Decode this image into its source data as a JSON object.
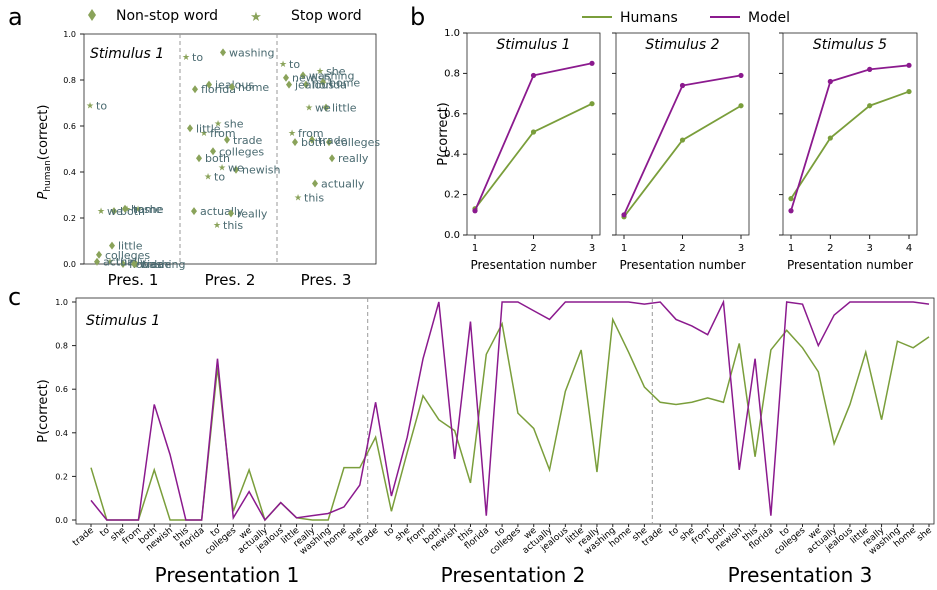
{
  "colors": {
    "humans": "#7a9e3b",
    "model": "#8b1a8e",
    "word": "#4a6a70",
    "marker": "#8aa35a",
    "axis": "#222222",
    "divider": "#9a9a9a"
  },
  "panel_labels": [
    "a",
    "b",
    "c"
  ],
  "chart_data": [
    {
      "type": "scatter",
      "panel": "a",
      "title": "Stimulus 1",
      "ylabel": "P_human(correct)",
      "ylabel_main": "P",
      "ylabel_sub": "human",
      "ylabel_rest": "(correct)",
      "ylim": [
        0,
        1.0
      ],
      "yticks": [
        0.0,
        0.2,
        0.4,
        0.6,
        0.8,
        1.0
      ],
      "x_groups": [
        "Pres. 1",
        "Pres. 2",
        "Pres. 3"
      ],
      "legend": [
        {
          "name": "Non-stop word",
          "marker": "diamond"
        },
        {
          "name": "Stop word",
          "marker": "star"
        }
      ],
      "points": [
        {
          "word": "to",
          "pres": 1,
          "y": 0.69,
          "stop": true
        },
        {
          "word": "to",
          "pres": 1,
          "y": 0.24,
          "stop": true
        },
        {
          "word": "both",
          "pres": 1,
          "y": 0.23,
          "stop": false
        },
        {
          "word": "we",
          "pres": 1,
          "y": 0.23,
          "stop": true
        },
        {
          "word": "she",
          "pres": 1,
          "y": 0.24,
          "stop": true
        },
        {
          "word": "home",
          "pres": 1,
          "y": 0.24,
          "stop": false
        },
        {
          "word": "little",
          "pres": 1,
          "y": 0.08,
          "stop": false
        },
        {
          "word": "colleges",
          "pres": 1,
          "y": 0.04,
          "stop": false
        },
        {
          "word": "trade",
          "pres": 1,
          "y": 0.0,
          "stop": false
        },
        {
          "word": "florida",
          "pres": 1,
          "y": 0.0,
          "stop": false
        },
        {
          "word": "this",
          "pres": 1,
          "y": 0.01,
          "stop": true
        },
        {
          "word": "actually",
          "pres": 1,
          "y": 0.01,
          "stop": false
        },
        {
          "word": "washing",
          "pres": 1,
          "y": 0.0,
          "stop": false
        },
        {
          "word": "to",
          "pres": 2,
          "y": 0.9,
          "stop": true
        },
        {
          "word": "washing",
          "pres": 2,
          "y": 0.92,
          "stop": false
        },
        {
          "word": "jealous",
          "pres": 2,
          "y": 0.78,
          "stop": false
        },
        {
          "word": "florida",
          "pres": 2,
          "y": 0.76,
          "stop": false
        },
        {
          "word": "home",
          "pres": 2,
          "y": 0.77,
          "stop": false
        },
        {
          "word": "she",
          "pres": 2,
          "y": 0.61,
          "stop": true
        },
        {
          "word": "from",
          "pres": 2,
          "y": 0.57,
          "stop": true
        },
        {
          "word": "little",
          "pres": 2,
          "y": 0.59,
          "stop": false
        },
        {
          "word": "trade",
          "pres": 2,
          "y": 0.54,
          "stop": false
        },
        {
          "word": "colleges",
          "pres": 2,
          "y": 0.49,
          "stop": false
        },
        {
          "word": "both",
          "pres": 2,
          "y": 0.46,
          "stop": false
        },
        {
          "word": "newish",
          "pres": 2,
          "y": 0.41,
          "stop": false
        },
        {
          "word": "we",
          "pres": 2,
          "y": 0.42,
          "stop": true
        },
        {
          "word": "to",
          "pres": 2,
          "y": 0.38,
          "stop": true
        },
        {
          "word": "actually",
          "pres": 2,
          "y": 0.23,
          "stop": false
        },
        {
          "word": "really",
          "pres": 2,
          "y": 0.22,
          "stop": false
        },
        {
          "word": "this",
          "pres": 2,
          "y": 0.17,
          "stop": true
        },
        {
          "word": "to",
          "pres": 3,
          "y": 0.87,
          "stop": true
        },
        {
          "word": "she",
          "pres": 3,
          "y": 0.84,
          "stop": true
        },
        {
          "word": "washing",
          "pres": 3,
          "y": 0.82,
          "stop": false
        },
        {
          "word": "newish",
          "pres": 3,
          "y": 0.81,
          "stop": false
        },
        {
          "word": "home",
          "pres": 3,
          "y": 0.79,
          "stop": false
        },
        {
          "word": "florida",
          "pres": 3,
          "y": 0.78,
          "stop": false
        },
        {
          "word": "jealous",
          "pres": 3,
          "y": 0.78,
          "stop": false
        },
        {
          "word": "little",
          "pres": 3,
          "y": 0.68,
          "stop": false
        },
        {
          "word": "we",
          "pres": 3,
          "y": 0.68,
          "stop": true
        },
        {
          "word": "from",
          "pres": 3,
          "y": 0.57,
          "stop": true
        },
        {
          "word": "colleges",
          "pres": 3,
          "y": 0.53,
          "stop": false
        },
        {
          "word": "trade",
          "pres": 3,
          "y": 0.54,
          "stop": false
        },
        {
          "word": "both",
          "pres": 3,
          "y": 0.53,
          "stop": false
        },
        {
          "word": "really",
          "pres": 3,
          "y": 0.46,
          "stop": false
        },
        {
          "word": "actually",
          "pres": 3,
          "y": 0.35,
          "stop": false
        },
        {
          "word": "this",
          "pres": 3,
          "y": 0.29,
          "stop": true
        }
      ]
    },
    {
      "type": "line",
      "panel": "b",
      "legend": [
        "Humans",
        "Model"
      ],
      "ylabel": "P(correct)",
      "xlabel": "Presentation number",
      "ylim": [
        0,
        1.0
      ],
      "yticks": [
        0.0,
        0.2,
        0.4,
        0.6,
        0.8,
        1.0
      ],
      "subplots": [
        {
          "title": "Stimulus 1",
          "x": [
            1,
            2,
            3
          ],
          "series": [
            {
              "name": "Humans",
              "values": [
                0.13,
                0.51,
                0.65
              ]
            },
            {
              "name": "Model",
              "values": [
                0.12,
                0.79,
                0.85
              ]
            }
          ]
        },
        {
          "title": "Stimulus 2",
          "x": [
            1,
            2,
            3
          ],
          "series": [
            {
              "name": "Humans",
              "values": [
                0.09,
                0.47,
                0.64
              ]
            },
            {
              "name": "Model",
              "values": [
                0.1,
                0.74,
                0.79
              ]
            }
          ]
        },
        {
          "title": "Stimulus 5",
          "x": [
            1,
            2,
            3,
            4
          ],
          "series": [
            {
              "name": "Humans",
              "values": [
                0.18,
                0.48,
                0.64,
                0.71
              ]
            },
            {
              "name": "Model",
              "values": [
                0.12,
                0.76,
                0.82,
                0.84
              ]
            }
          ]
        }
      ]
    },
    {
      "type": "line",
      "panel": "c",
      "title": "Stimulus 1",
      "ylabel": "P(correct)",
      "ylim": [
        0,
        1.0
      ],
      "yticks": [
        0.0,
        0.2,
        0.4,
        0.6,
        0.8,
        1.0
      ],
      "group_labels": [
        "Presentation 1",
        "Presentation 2",
        "Presentation 3"
      ],
      "categories": [
        "trade",
        "to",
        "she",
        "from",
        "both",
        "newish",
        "this",
        "florida",
        "to",
        "colleges",
        "we",
        "actually",
        "jealous",
        "little",
        "really",
        "washing",
        "home",
        "she",
        "trade",
        "to",
        "she",
        "from",
        "both",
        "newish",
        "this",
        "florida",
        "to",
        "colleges",
        "we",
        "actually",
        "jealous",
        "little",
        "really",
        "washing",
        "home",
        "she",
        "trade",
        "to",
        "she",
        "from",
        "both",
        "newish",
        "this",
        "florida",
        "to",
        "colleges",
        "we",
        "actually",
        "jealous",
        "little",
        "really",
        "washing",
        "home",
        "she"
      ],
      "series": [
        {
          "name": "Humans",
          "values": [
            0.24,
            0.0,
            0.0,
            0.0,
            0.23,
            0.0,
            0.0,
            0.0,
            0.7,
            0.04,
            0.23,
            0.0,
            0.08,
            0.01,
            0.0,
            0.0,
            0.24,
            0.24,
            0.38,
            0.04,
            0.31,
            0.57,
            0.46,
            0.41,
            0.17,
            0.76,
            0.9,
            0.49,
            0.42,
            0.23,
            0.59,
            0.78,
            0.22,
            0.92,
            0.77,
            0.61,
            0.54,
            0.53,
            0.54,
            0.56,
            0.54,
            0.81,
            0.29,
            0.78,
            0.87,
            0.79,
            0.68,
            0.35,
            0.53,
            0.77,
            0.46,
            0.82,
            0.79,
            0.84
          ]
        },
        {
          "name": "Model",
          "values": [
            0.09,
            0.0,
            0.0,
            0.0,
            0.53,
            0.3,
            0.0,
            0.0,
            0.74,
            0.01,
            0.13,
            0.0,
            0.08,
            0.01,
            0.02,
            0.03,
            0.06,
            0.16,
            0.54,
            0.11,
            0.38,
            0.74,
            1.0,
            0.28,
            0.91,
            0.02,
            1.0,
            1.0,
            0.96,
            0.92,
            1.0,
            1.0,
            1.0,
            1.0,
            1.0,
            0.99,
            1.0,
            0.92,
            0.89,
            0.85,
            1.0,
            0.23,
            0.74,
            0.02,
            1.0,
            0.99,
            0.8,
            0.94,
            1.0,
            1.0,
            1.0,
            1.0,
            1.0,
            0.99
          ]
        }
      ]
    }
  ]
}
